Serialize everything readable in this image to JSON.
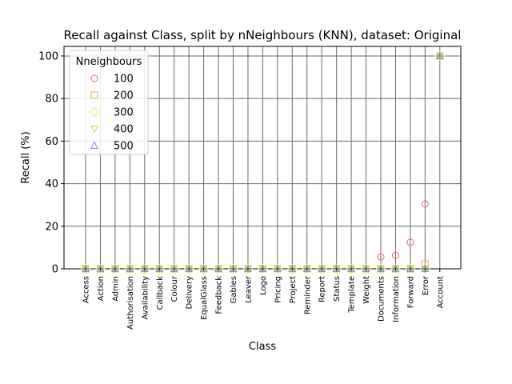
{
  "chart_data": {
    "type": "scatter",
    "title": "Recall against Class, split by nNeighbours (KNN), dataset: Original",
    "xlabel": "Class",
    "ylabel": "Recall (%)",
    "ylim": [
      0,
      104.5
    ],
    "yticks": [
      "0",
      "20",
      "40",
      "60",
      "80",
      "100"
    ],
    "grid": true,
    "legend": {
      "title": "Nneighbours",
      "placement": "top-left"
    },
    "categories": [
      "Access",
      "Action",
      "Admin",
      "Authorisation",
      "Availability",
      "Callback",
      "Colour",
      "Delivery",
      "EqualGlass",
      "Feedback",
      "Gables",
      "Leaver",
      "Logo",
      "Pricing",
      "Project",
      "Reminder",
      "Report",
      "Status",
      "Template",
      "Weight",
      "Documents",
      "Information",
      "Forward",
      "Error",
      "Account"
    ],
    "series": [
      {
        "name": "100",
        "marker": "circle",
        "color": "#e8607a",
        "values": [
          0,
          0,
          0,
          0,
          0,
          0,
          0,
          0,
          0,
          0,
          0,
          0,
          0,
          0,
          0,
          0,
          0,
          0,
          0,
          0,
          5.6,
          6.3,
          12.5,
          30.5,
          100
        ]
      },
      {
        "name": "200",
        "marker": "square",
        "color": "#f2a65a",
        "values": [
          0,
          0,
          0,
          0,
          0,
          0,
          0,
          0,
          0,
          0,
          0,
          0,
          0,
          0,
          0,
          0,
          0,
          0,
          0,
          0,
          0,
          0,
          0,
          2.2,
          100
        ]
      },
      {
        "name": "300",
        "marker": "diamond",
        "color": "#eef05a",
        "values": [
          0,
          0,
          0,
          0,
          0,
          0,
          0,
          0,
          0,
          0,
          0,
          0,
          0,
          0,
          0,
          0,
          0,
          0,
          0,
          0,
          0,
          0,
          0,
          0,
          100
        ]
      },
      {
        "name": "400",
        "marker": "triangle-down",
        "color": "#b3e35a",
        "values": [
          0,
          0,
          0,
          0,
          0,
          0,
          0,
          0,
          0,
          0,
          0,
          0,
          0,
          0,
          0,
          0,
          0,
          0,
          0,
          0,
          0,
          0,
          0,
          0,
          100
        ]
      },
      {
        "name": "500",
        "marker": "triangle-up",
        "color": "#7b8fd4",
        "values": [
          0,
          0,
          0,
          0,
          0,
          0,
          0,
          0,
          0,
          0,
          0,
          0,
          0,
          0,
          0,
          0,
          0,
          0,
          0,
          0,
          0,
          0,
          0,
          0,
          100
        ]
      }
    ]
  }
}
